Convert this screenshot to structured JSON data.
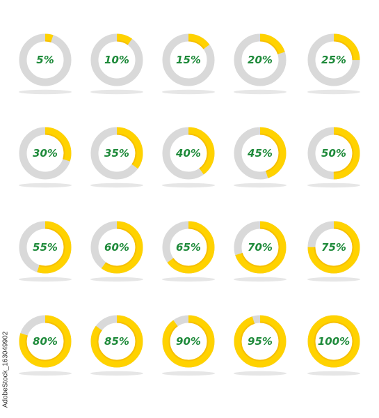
{
  "indicators": [
    {
      "label": "5%",
      "value": 5
    },
    {
      "label": "10%",
      "value": 10
    },
    {
      "label": "15%",
      "value": 15
    },
    {
      "label": "20%",
      "value": 20
    },
    {
      "label": "25%",
      "value": 25
    },
    {
      "label": "30%",
      "value": 30
    },
    {
      "label": "35%",
      "value": 35
    },
    {
      "label": "40%",
      "value": 40
    },
    {
      "label": "45%",
      "value": 45
    },
    {
      "label": "50%",
      "value": 50
    },
    {
      "label": "55%",
      "value": 55
    },
    {
      "label": "60%",
      "value": 60
    },
    {
      "label": "65%",
      "value": 65
    },
    {
      "label": "70%",
      "value": 70
    },
    {
      "label": "75%",
      "value": 75
    },
    {
      "label": "80%",
      "value": 80
    },
    {
      "label": "85%",
      "value": 85
    },
    {
      "label": "90%",
      "value": 90
    },
    {
      "label": "95%",
      "value": 95
    },
    {
      "label": "100%",
      "value": 100
    }
  ],
  "colors": {
    "track": "#d9d9d9",
    "fill": "#ffd200",
    "fill_dark": "#f2b400",
    "label": "#1e8a3a",
    "shadow": "#e6e6e6"
  },
  "side_id": "AdobeStock_163049902"
}
